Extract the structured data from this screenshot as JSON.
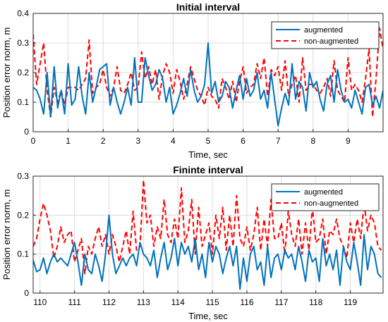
{
  "colors": {
    "augmented": "#0072BD",
    "non_augmented": "#FF0000",
    "grid": "#dcdcdc",
    "axis": "#262626"
  },
  "chart_data": [
    {
      "type": "line",
      "title": "Initial interval",
      "xlabel": "Time, sec",
      "ylabel": "Position error norm, m",
      "xlim": [
        0,
        10
      ],
      "ylim": [
        0,
        0.4
      ],
      "xticks": [
        "0",
        "1",
        "2",
        "3",
        "4",
        "5",
        "6",
        "7",
        "8",
        "9"
      ],
      "yticks": [
        "0",
        "0.1",
        "0.2",
        "0.3",
        "0.4"
      ],
      "grid": true,
      "legend_position": "top-right",
      "series": [
        {
          "name": "augmented",
          "style": "solid",
          "x": [
            0,
            0.1,
            0.2,
            0.3,
            0.4,
            0.5,
            0.6,
            0.7,
            0.8,
            0.9,
            1,
            1.1,
            1.2,
            1.3,
            1.4,
            1.5,
            1.6,
            1.7,
            1.8,
            1.9,
            2,
            2.1,
            2.2,
            2.3,
            2.4,
            2.5,
            2.6,
            2.7,
            2.8,
            2.9,
            3,
            3.1,
            3.2,
            3.3,
            3.4,
            3.5,
            3.6,
            3.7,
            3.8,
            3.9,
            4,
            4.1,
            4.2,
            4.3,
            4.4,
            4.5,
            4.6,
            4.7,
            4.8,
            4.9,
            5,
            5.1,
            5.2,
            5.3,
            5.4,
            5.5,
            5.6,
            5.7,
            5.8,
            5.9,
            6,
            6.1,
            6.2,
            6.3,
            6.4,
            6.5,
            6.6,
            6.7,
            6.8,
            6.9,
            7,
            7.1,
            7.2,
            7.3,
            7.4,
            7.5,
            7.6,
            7.7,
            7.8,
            7.9,
            8,
            8.1,
            8.2,
            8.3,
            8.4,
            8.5,
            8.6,
            8.7,
            8.8,
            8.9,
            9,
            9.1,
            9.2,
            9.3,
            9.4,
            9.5,
            9.6,
            9.7,
            9.8,
            9.9,
            10
          ],
          "y": [
            0.15,
            0.14,
            0.11,
            0.06,
            0.2,
            0.05,
            0.22,
            0.08,
            0.14,
            0.06,
            0.23,
            0.09,
            0.11,
            0.22,
            0.12,
            0.06,
            0.2,
            0.1,
            0.15,
            0.21,
            0.22,
            0.23,
            0.09,
            0.15,
            0.1,
            0.06,
            0.1,
            0.15,
            0.09,
            0.25,
            0.1,
            0.1,
            0.25,
            0.19,
            0.14,
            0.16,
            0.21,
            0.18,
            0.1,
            0.15,
            0.06,
            0.09,
            0.13,
            0.18,
            0.12,
            0.21,
            0.14,
            0.1,
            0.12,
            0.16,
            0.3,
            0.13,
            0.17,
            0.1,
            0.12,
            0.17,
            0.15,
            0.08,
            0.14,
            0.19,
            0.11,
            0.18,
            0.12,
            0.14,
            0.2,
            0.11,
            0.14,
            0.08,
            0.2,
            0.11,
            0.02,
            0.08,
            0.13,
            0.09,
            0.23,
            0.11,
            0.17,
            0.15,
            0.07,
            0.2,
            0.15,
            0.17,
            0.11,
            0.07,
            0.16,
            0.19,
            0.1,
            0.21,
            0.14,
            0.1,
            0.11,
            0.08,
            0.14,
            0.1,
            0.06,
            0.15,
            0.16,
            0.09,
            0.12,
            0.08,
            0.14
          ]
        },
        {
          "name": "non-augmented",
          "style": "dashed",
          "x": [
            0,
            0.1,
            0.2,
            0.3,
            0.4,
            0.5,
            0.6,
            0.7,
            0.8,
            0.9,
            1,
            1.1,
            1.2,
            1.3,
            1.4,
            1.5,
            1.6,
            1.7,
            1.8,
            1.9,
            2,
            2.1,
            2.2,
            2.3,
            2.4,
            2.5,
            2.6,
            2.7,
            2.8,
            2.9,
            3,
            3.1,
            3.2,
            3.3,
            3.4,
            3.5,
            3.6,
            3.7,
            3.8,
            3.9,
            4,
            4.1,
            4.2,
            4.3,
            4.4,
            4.5,
            4.6,
            4.7,
            4.8,
            4.9,
            5,
            5.1,
            5.2,
            5.3,
            5.4,
            5.5,
            5.6,
            5.7,
            5.8,
            5.9,
            6,
            6.1,
            6.2,
            6.3,
            6.4,
            6.5,
            6.6,
            6.7,
            6.8,
            6.9,
            7,
            7.1,
            7.2,
            7.3,
            7.4,
            7.5,
            7.6,
            7.7,
            7.8,
            7.9,
            8,
            8.1,
            8.2,
            8.3,
            8.4,
            8.5,
            8.6,
            8.7,
            8.8,
            8.9,
            9,
            9.1,
            9.2,
            9.3,
            9.4,
            9.5,
            9.6,
            9.7,
            9.8,
            9.9,
            10
          ],
          "y": [
            0.33,
            0.16,
            0.23,
            0.3,
            0.14,
            0.05,
            0.15,
            0.1,
            0.14,
            0.09,
            0.15,
            0.15,
            0.15,
            0.14,
            0.16,
            0.18,
            0.31,
            0.13,
            0.15,
            0.16,
            0.21,
            0.15,
            0.12,
            0.15,
            0.22,
            0.14,
            0.13,
            0.16,
            0.2,
            0.14,
            0.15,
            0.27,
            0.18,
            0.22,
            0.16,
            0.21,
            0.11,
            0.19,
            0.23,
            0.2,
            0.13,
            0.21,
            0.17,
            0.11,
            0.16,
            0.22,
            0.18,
            0.14,
            0.12,
            0.09,
            0.15,
            0.12,
            0.11,
            0.08,
            0.18,
            0.15,
            0.11,
            0.17,
            0.1,
            0.17,
            0.22,
            0.13,
            0.15,
            0.16,
            0.23,
            0.18,
            0.25,
            0.12,
            0.21,
            0.19,
            0.22,
            0.14,
            0.24,
            0.12,
            0.16,
            0.19,
            0.1,
            0.25,
            0.14,
            0.16,
            0.16,
            0.14,
            0.13,
            0.15,
            0.18,
            0.12,
            0.24,
            0.14,
            0.12,
            0.1,
            0.25,
            0.14,
            0.16,
            0.14,
            0.1,
            0.18,
            0.28,
            0.05,
            0.18,
            0.35,
            0.28
          ]
        }
      ]
    },
    {
      "type": "line",
      "title": "Fininte interval",
      "xlabel": "Time, sec",
      "ylabel": "Position error norm, m",
      "xlim": [
        109.8,
        119.95
      ],
      "ylim": [
        0,
        0.3
      ],
      "xticks": [
        "110",
        "111",
        "112",
        "113",
        "114",
        "115",
        "116",
        "117",
        "118",
        "119"
      ],
      "yticks": [
        "0",
        "0.1",
        "0.2",
        "0.3"
      ],
      "grid": true,
      "legend_position": "top-right",
      "series": [
        {
          "name": "augmented",
          "style": "solid",
          "x": [
            109.8,
            109.9,
            110,
            110.1,
            110.2,
            110.3,
            110.4,
            110.5,
            110.6,
            110.7,
            110.8,
            110.9,
            111,
            111.1,
            111.2,
            111.3,
            111.4,
            111.5,
            111.6,
            111.7,
            111.8,
            111.9,
            112,
            112.1,
            112.2,
            112.3,
            112.4,
            112.5,
            112.6,
            112.7,
            112.8,
            112.9,
            113,
            113.1,
            113.2,
            113.3,
            113.4,
            113.5,
            113.6,
            113.7,
            113.8,
            113.9,
            114,
            114.1,
            114.2,
            114.3,
            114.4,
            114.5,
            114.6,
            114.7,
            114.8,
            114.9,
            115,
            115.1,
            115.2,
            115.3,
            115.4,
            115.5,
            115.6,
            115.7,
            115.8,
            115.9,
            116,
            116.1,
            116.2,
            116.3,
            116.4,
            116.5,
            116.6,
            116.7,
            116.8,
            116.9,
            117,
            117.1,
            117.2,
            117.3,
            117.4,
            117.5,
            117.6,
            117.7,
            117.8,
            117.9,
            118,
            118.1,
            118.2,
            118.3,
            118.4,
            118.5,
            118.6,
            118.7,
            118.8,
            118.9,
            119,
            119.1,
            119.2,
            119.3,
            119.4,
            119.5,
            119.6,
            119.7,
            119.8,
            119.9
          ],
          "y": [
            0.085,
            0.055,
            0.06,
            0.09,
            0.05,
            0.08,
            0.1,
            0.08,
            0.09,
            0.08,
            0.07,
            0.1,
            0.13,
            0.08,
            0.02,
            0.1,
            0.06,
            0.05,
            0.1,
            0.07,
            0.03,
            0.1,
            0.2,
            0.1,
            0.05,
            0.07,
            0.09,
            0.07,
            0.09,
            0.1,
            0.07,
            0.13,
            0.1,
            0.09,
            0.07,
            0.11,
            0.04,
            0.09,
            0.13,
            0.06,
            0.09,
            0.14,
            0.07,
            0.13,
            0.1,
            0.12,
            0.08,
            0.14,
            0.06,
            0.1,
            0.04,
            0.13,
            0.08,
            0.12,
            0.1,
            0.05,
            0.09,
            0.12,
            0.07,
            0.12,
            0.01,
            0.09,
            0.03,
            0.1,
            0.12,
            0.06,
            0.08,
            0.02,
            0.12,
            0.04,
            0.09,
            0.1,
            0.06,
            0.11,
            0.09,
            0.1,
            0.06,
            0.12,
            0.08,
            0.03,
            0.11,
            0.08,
            0.09,
            0.03,
            0.14,
            0.07,
            0.1,
            0.06,
            0.11,
            0.02,
            0.12,
            0.08,
            0.06,
            0.13,
            0.08,
            0.02,
            0.15,
            0.06,
            0.12,
            0.1,
            0.05,
            0.04
          ]
        },
        {
          "name": "non-augmented",
          "style": "dashed",
          "x": [
            109.8,
            109.9,
            110,
            110.1,
            110.2,
            110.3,
            110.4,
            110.5,
            110.6,
            110.7,
            110.8,
            110.9,
            111,
            111.1,
            111.2,
            111.3,
            111.4,
            111.5,
            111.6,
            111.7,
            111.8,
            111.9,
            112,
            112.1,
            112.2,
            112.3,
            112.4,
            112.5,
            112.6,
            112.7,
            112.8,
            112.9,
            113,
            113.1,
            113.2,
            113.3,
            113.4,
            113.5,
            113.6,
            113.7,
            113.8,
            113.9,
            114,
            114.1,
            114.2,
            114.3,
            114.4,
            114.5,
            114.6,
            114.7,
            114.8,
            114.9,
            115,
            115.1,
            115.2,
            115.3,
            115.4,
            115.5,
            115.6,
            115.7,
            115.8,
            115.9,
            116,
            116.1,
            116.2,
            116.3,
            116.4,
            116.5,
            116.6,
            116.7,
            116.8,
            116.9,
            117,
            117.1,
            117.2,
            117.3,
            117.4,
            117.5,
            117.6,
            117.7,
            117.8,
            117.9,
            118,
            118.1,
            118.2,
            118.3,
            118.4,
            118.5,
            118.6,
            118.7,
            118.8,
            118.9,
            119,
            119.1,
            119.2,
            119.3,
            119.4,
            119.5,
            119.6,
            119.7,
            119.8,
            119.9
          ],
          "y": [
            0.12,
            0.14,
            0.19,
            0.23,
            0.2,
            0.16,
            0.09,
            0.12,
            0.17,
            0.13,
            0.15,
            0.16,
            0.08,
            0.11,
            0.14,
            0.05,
            0.12,
            0.1,
            0.14,
            0.17,
            0.12,
            0.15,
            0.1,
            0.15,
            0.12,
            0.08,
            0.12,
            0.16,
            0.1,
            0.21,
            0.11,
            0.12,
            0.29,
            0.18,
            0.2,
            0.12,
            0.17,
            0.14,
            0.24,
            0.15,
            0.13,
            0.19,
            0.14,
            0.27,
            0.13,
            0.16,
            0.24,
            0.1,
            0.22,
            0.12,
            0.15,
            0.18,
            0.1,
            0.2,
            0.14,
            0.22,
            0.11,
            0.2,
            0.12,
            0.25,
            0.14,
            0.12,
            0.17,
            0.11,
            0.15,
            0.22,
            0.11,
            0.19,
            0.12,
            0.24,
            0.14,
            0.14,
            0.18,
            0.1,
            0.21,
            0.15,
            0.12,
            0.19,
            0.1,
            0.18,
            0.11,
            0.22,
            0.13,
            0.14,
            0.19,
            0.1,
            0.16,
            0.15,
            0.19,
            0.14,
            0.12,
            0.09,
            0.18,
            0.13,
            0.19,
            0.14,
            0.23,
            0.16,
            0.2,
            0.18,
            0.12,
            0.11
          ]
        }
      ]
    }
  ]
}
